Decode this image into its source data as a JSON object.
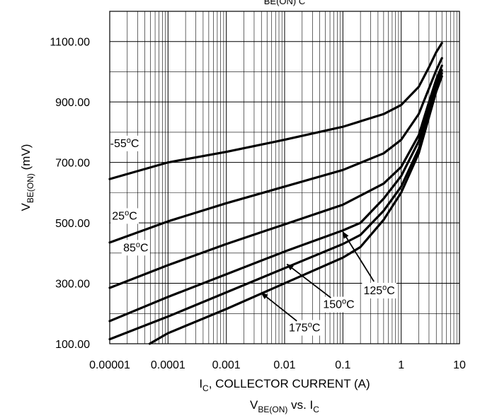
{
  "chart_data": {
    "type": "line",
    "title": "V_BE(ON) vs. I_C",
    "top_title_fragment": "BE(ON)   C",
    "xlabel": "I_C, COLLECTOR CURRENT (A)",
    "ylabel": "V_BE(ON) (mV)",
    "x_scale": "log",
    "xlim": [
      1e-05,
      10
    ],
    "ylim": [
      100,
      1200
    ],
    "grid": true,
    "x_ticks": [
      {
        "value": 1e-05,
        "label": "0.00001"
      },
      {
        "value": 0.0001,
        "label": "0.0001"
      },
      {
        "value": 0.001,
        "label": "0.001"
      },
      {
        "value": 0.01,
        "label": "0.01"
      },
      {
        "value": 0.1,
        "label": "0.1"
      },
      {
        "value": 1,
        "label": "1"
      },
      {
        "value": 10,
        "label": "10"
      }
    ],
    "y_ticks": [
      {
        "value": 100,
        "label": "100.00"
      },
      {
        "value": 300,
        "label": "300.00"
      },
      {
        "value": 500,
        "label": "500.00"
      },
      {
        "value": 700,
        "label": "700.00"
      },
      {
        "value": 900,
        "label": "900.00"
      },
      {
        "value": 1100,
        "label": "1100.00"
      }
    ],
    "series": [
      {
        "name": "-55°C",
        "points": [
          [
            1e-05,
            645
          ],
          [
            0.0001,
            700
          ],
          [
            0.001,
            735
          ],
          [
            0.01,
            775
          ],
          [
            0.1,
            818
          ],
          [
            0.5,
            860
          ],
          [
            1,
            890
          ],
          [
            2,
            950
          ],
          [
            3,
            1015
          ],
          [
            4,
            1065
          ],
          [
            5,
            1095
          ]
        ]
      },
      {
        "name": "25°C",
        "points": [
          [
            1e-05,
            435
          ],
          [
            0.0001,
            505
          ],
          [
            0.001,
            565
          ],
          [
            0.01,
            620
          ],
          [
            0.1,
            675
          ],
          [
            0.5,
            730
          ],
          [
            1,
            775
          ],
          [
            2,
            860
          ],
          [
            3,
            945
          ],
          [
            4,
            1005
          ],
          [
            5,
            1045
          ]
        ]
      },
      {
        "name": "85°C",
        "points": [
          [
            1e-05,
            285
          ],
          [
            0.0001,
            360
          ],
          [
            0.001,
            430
          ],
          [
            0.01,
            495
          ],
          [
            0.1,
            560
          ],
          [
            0.5,
            630
          ],
          [
            1,
            685
          ],
          [
            2,
            790
          ],
          [
            3,
            900
          ],
          [
            4,
            975
          ],
          [
            5,
            1020
          ]
        ]
      },
      {
        "name": "125°C",
        "points": [
          [
            1e-05,
            175
          ],
          [
            0.0001,
            255
          ],
          [
            0.001,
            330
          ],
          [
            0.01,
            405
          ],
          [
            0.1,
            475
          ],
          [
            0.2,
            500
          ],
          [
            0.5,
            580
          ],
          [
            1,
            655
          ],
          [
            2,
            770
          ],
          [
            3,
            880
          ],
          [
            4,
            960
          ],
          [
            5,
            1005
          ]
        ]
      },
      {
        "name": "150°C",
        "points": [
          [
            1e-05,
            115
          ],
          [
            0.0001,
            190
          ],
          [
            0.001,
            270
          ],
          [
            0.01,
            350
          ],
          [
            0.1,
            430
          ],
          [
            0.2,
            460
          ],
          [
            0.5,
            540
          ],
          [
            1,
            620
          ],
          [
            2,
            745
          ],
          [
            3,
            860
          ],
          [
            4,
            945
          ],
          [
            5,
            995
          ]
        ]
      },
      {
        "name": "175°C",
        "points": [
          [
            4.85e-05,
            100
          ],
          [
            0.0001,
            135
          ],
          [
            0.001,
            215
          ],
          [
            0.01,
            300
          ],
          [
            0.1,
            385
          ],
          [
            0.2,
            420
          ],
          [
            0.5,
            510
          ],
          [
            1,
            600
          ],
          [
            2,
            730
          ],
          [
            3,
            850
          ],
          [
            4,
            935
          ],
          [
            5,
            985
          ]
        ]
      }
    ],
    "annotations": [
      {
        "series": 0,
        "label": "-55°C",
        "x": 1.8e-05,
        "y": 765
      },
      {
        "series": 1,
        "label": "25°C",
        "x": 1.8e-05,
        "y": 525
      },
      {
        "series": 2,
        "label": "85°C",
        "x": 2.8e-05,
        "y": 420
      },
      {
        "series": 3,
        "label": "125°C",
        "x": 0.42,
        "y": 278,
        "arrow_to": [
          0.1,
          470
        ]
      },
      {
        "series": 4,
        "label": "150°C",
        "x": 0.085,
        "y": 232,
        "arrow_to": [
          0.011,
          363
        ]
      },
      {
        "series": 5,
        "label": "175°C",
        "x": 0.022,
        "y": 155,
        "arrow_to": [
          0.004,
          268
        ]
      }
    ]
  }
}
